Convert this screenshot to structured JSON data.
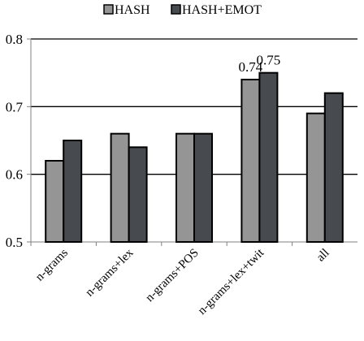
{
  "chart_data": {
    "type": "bar",
    "categories": [
      "n-grams",
      "n-grams+lex",
      "n-grams+POS",
      "n-grams+lex+twit",
      "all"
    ],
    "series": [
      {
        "name": "HASH",
        "values": [
          0.62,
          0.66,
          0.66,
          0.74,
          0.69
        ],
        "color": "#959595"
      },
      {
        "name": "HASH+EMOT",
        "values": [
          0.65,
          0.64,
          0.66,
          0.75,
          0.72
        ],
        "color": "#474a4e"
      }
    ],
    "data_labels": [
      {
        "series": "HASH",
        "category": "n-grams+lex+twit",
        "text": "0.74"
      },
      {
        "series": "HASH+EMOT",
        "category": "n-grams+lex+twit",
        "text": "0.75"
      }
    ],
    "ylim": [
      0.5,
      0.8
    ],
    "yticks": [
      0.5,
      0.6,
      0.7,
      0.8
    ],
    "ytick_labels": [
      "0.5",
      "0.6",
      "0.7",
      "0.8"
    ],
    "xlabel": "",
    "ylabel": "",
    "title": "",
    "grid": "horizontal",
    "legend_position": "top-center",
    "axis_color": "#808080",
    "gridline_color": "#000000",
    "bar_edge_color": "#000000"
  }
}
